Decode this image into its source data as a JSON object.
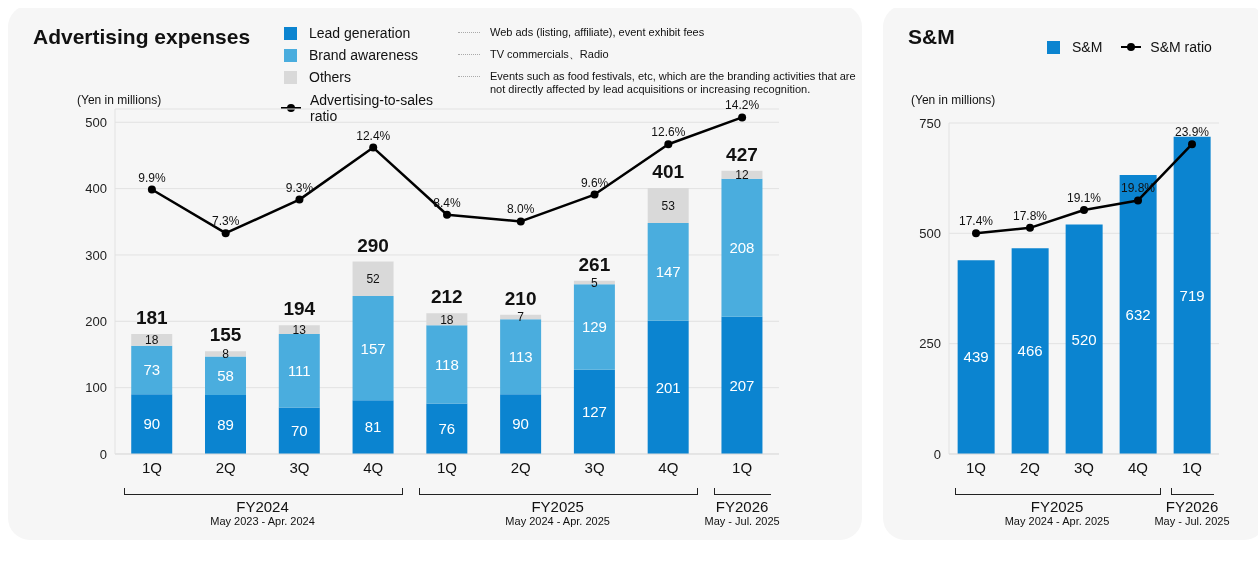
{
  "chart_data": [
    {
      "type": "bar",
      "title": "Advertising expenses",
      "ylabel": "(Yen in millions)",
      "categories": [
        "1Q",
        "2Q",
        "3Q",
        "4Q",
        "1Q",
        "2Q",
        "3Q",
        "4Q",
        "1Q"
      ],
      "stacked": true,
      "ylim": [
        0,
        520
      ],
      "yticks": [
        0,
        100,
        200,
        300,
        400,
        500
      ],
      "y2lim": [
        -5.86,
        14.7
      ],
      "grid": "y",
      "legend": "top",
      "marker": "circle",
      "data_labels": true,
      "series": [
        {
          "name": "Lead generation",
          "color": "#0b84d0",
          "values": [
            90,
            89,
            70,
            81,
            76,
            90,
            127,
            201,
            207
          ]
        },
        {
          "name": "Brand awareness",
          "color": "#4aadde",
          "values": [
            73,
            58,
            111,
            157,
            118,
            113,
            129,
            147,
            208
          ]
        },
        {
          "name": "Others",
          "color": "#d9d9d9",
          "values": [
            18,
            8,
            13,
            52,
            18,
            7,
            5,
            53,
            12
          ]
        },
        {
          "name": "Advertising-to-sales ratio",
          "type": "line",
          "axis": "y2",
          "color": "#000000",
          "values": [
            9.9,
            7.3,
            9.3,
            12.4,
            8.4,
            8.0,
            9.6,
            12.6,
            14.2
          ],
          "value_labels": [
            "9.9%",
            "7.3%",
            "9.3%",
            "12.4%",
            "8.4%",
            "8.0%",
            "9.6%",
            "12.6%",
            "14.2%"
          ]
        }
      ],
      "totals": [
        "181",
        "155",
        "194",
        "290",
        "212",
        "210",
        "261",
        "401",
        "427"
      ],
      "annotations": [
        "Web ads (listing, affiliate), event exhibit fees",
        "TV commercials、Radio",
        "Events such as food festivals, etc, which are the branding activities that are not directly affected by lead acquisitions or increasing recognition.",
        "FY2024",
        "May 2023 - Apr. 2024",
        "FY2025",
        "May 2024 - Apr. 2025",
        "FY2026",
        "May - Jul. 2025"
      ]
    },
    {
      "type": "bar",
      "title": "S&M",
      "ylabel": "(Yen in millions)",
      "categories": [
        "1Q",
        "2Q",
        "3Q",
        "4Q",
        "1Q"
      ],
      "ylim": [
        0,
        750
      ],
      "yticks": [
        0,
        250,
        500,
        750
      ],
      "y2lim": [
        1.32,
        25.44
      ],
      "grid": "y",
      "legend": "top",
      "marker": "circle",
      "data_labels": true,
      "series": [
        {
          "name": "S&M",
          "color": "#0b84d0",
          "values": [
            439,
            466,
            520,
            632,
            719
          ]
        },
        {
          "name": "S&M ratio",
          "type": "line",
          "axis": "y2",
          "color": "#000000",
          "values": [
            17.4,
            17.8,
            19.1,
            19.8,
            23.9
          ],
          "value_labels": [
            "17.4%",
            "17.8%",
            "19.1%",
            "19.8%",
            "23.9%"
          ]
        }
      ],
      "annotations": [
        "FY2025",
        "May 2024 - Apr. 2025",
        "FY2026",
        "May - Jul. 2025"
      ]
    }
  ]
}
